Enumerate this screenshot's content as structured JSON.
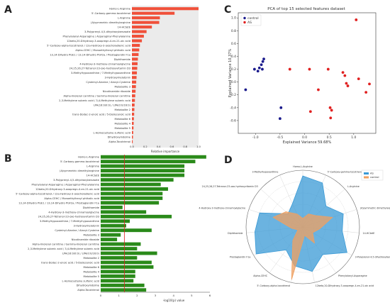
{
  "panels": {
    "A": {
      "letter": "A",
      "xlabel": "Relative importance",
      "bar_color": "#f0503a",
      "chart_data": {
        "type": "bar",
        "orientation": "horizontal",
        "categories": [
          "Homo-L-Arginine",
          "5'-Carboxy-gamma-tocotrienol",
          "L-Arginine",
          "(A)symmetric dimethylarginine",
          "14-HCtetE",
          "3-Polyprenyl-4,5-dihydroxybenzoate",
          "Phenylalanyl-Asparagine / Asparaginyl-Phenylalanine",
          "12beta,20-Dihydroxy-3-oxopregn-4-en-21-oic acid",
          "5'-Carboxy-alpha-tocotrienol / 12a-Hydroxy-3-oxocholadienic acid",
          "Alpha-CEHC / Monoethylhexyl phthalic acid",
          "13,14-Dihydro PGE1 / 13,14-Dihydro PGF2a / Prostaglandin F1a",
          "Diphthamide",
          "4-Hydroxy-3-methoxy-cinnamoylglycine",
          "24,25,26,27-Tetranor-23-oxo-hydroxyvitamin D3",
          "3-Methylhypoxanthine / 7-Methylhypoxanthine",
          "3-Hydroxymelatonin",
          "Cysteinyl-Alanine / Alanyl-Cysteine",
          "Metabolite 3",
          "Nicotinamide riboside",
          "Alpha-linolenyl carnitine / Gamma-linolenyl carnitine",
          "2,3-Methylene suberic acid / 3,4-Methylene suberic acid",
          "LPA(16:0/0:0) / LPA(0:0/16:0)",
          "Metabolite 2",
          "trans-Dodec-2-enoic acid / 5-Dodecenoic acid",
          "Metabolite 6",
          "Metabolite 4",
          "Metabolite 5",
          "L-Homocysteine sulfonic acid",
          "Dihydroxyindoline",
          "Alpha-Tocotrienol"
        ],
        "values": [
          1.0,
          0.64,
          0.42,
          0.41,
          0.3,
          0.22,
          0.18,
          0.15,
          0.12,
          0.11,
          0.1,
          0.09,
          0.085,
          0.08,
          0.075,
          0.07,
          0.065,
          0.06,
          0.055,
          0.05,
          0.045,
          0.04,
          0.037,
          0.034,
          0.03,
          0.027,
          0.024,
          0.02,
          0.016,
          0.012
        ],
        "xlim": [
          0,
          1.0
        ],
        "xticks": [
          "0.0",
          "0.2",
          "0.4",
          "0.6",
          "0.8",
          "1.0"
        ]
      }
    },
    "B": {
      "letter": "B",
      "xlabel": "-log10(p) value",
      "bar_color": "#2a8a1a",
      "threshold": 1.3,
      "chart_data": {
        "type": "bar",
        "orientation": "horizontal",
        "categories": [
          "Homo-L-Arginine",
          "5'-Carboxy-gamma-tocotrienol",
          "L-Arginine",
          "(A)symmetric dimethylarginine",
          "14-HCtetE",
          "3-Polyprenyl-4,5-dihydroxybenzoate",
          "Phenylalanyl-Asparagine / Asparaginyl-Phenylalanine",
          "12beta,20-Dihydroxy-3-oxopregn-4-en-21-oic acid",
          "5'-Carboxy-alpha-tocotrienol / 12a-Hydroxy-3-oxocholadienic acid",
          "Alpha-CEHC / Monoethylhexyl phthalic acid",
          "13,14-Dihydro PGE1 / 13,14-Dihydro PGF2a / Prostaglandin F1a",
          "Diphthamide",
          "4-Hydroxy-3-methoxy-cinnamoylglycine",
          "24,25,26,27-Tetranor-23-oxo-hydroxyvitamin D3",
          "3-Methylhypoxanthine / 7-Methylhypoxanthine",
          "3-Hydroxymelatonin",
          "Cysteinyl-Alanine / Alanyl-Cysteine",
          "Metabolite 3",
          "Nicotinamide riboside",
          "Alpha-linolenyl carnitine / Gamma-linolenyl carnitine",
          "2,3-Methylene suberic acid / 3,4-Methylene suberic acid",
          "LPA(16:0/0:0) / LPA(0:0/16:0)",
          "Metabolite 2",
          "trans-Dodec-2-enoic acid / 5-Dodecenoic acid",
          "Metabolite 6",
          "Metabolite 4",
          "Metabolite 5",
          "L-Homocysteine sulfonic acid",
          "Dihydroxyindoline",
          "Alpha-Tocotrienol"
        ],
        "values": [
          5.8,
          5.2,
          4.6,
          4.6,
          4.6,
          4.0,
          3.3,
          3.7,
          3.4,
          3.4,
          3.2,
          1.2,
          2.5,
          3.9,
          1.6,
          1.4,
          2.8,
          1.1,
          0.9,
          2.2,
          2.0,
          3.1,
          2.0,
          2.8,
          2.9,
          1.9,
          1.9,
          1.8,
          2.4,
          2.5
        ],
        "xlim": [
          0,
          6
        ],
        "xticks": [
          "0",
          "1",
          "2",
          "3",
          "4",
          "5",
          "6"
        ]
      }
    },
    "C": {
      "letter": "C",
      "title": "PCA of top 15 selected features dataset",
      "xlabel": "Explained Variance 59.68%",
      "ylabel": "Explained Variance 10.37%",
      "chart_data": {
        "type": "scatter",
        "xlim": [
          -1.35,
          1.45
        ],
        "ylim": [
          -0.8,
          1.08
        ],
        "xticks": [
          -1.0,
          -0.5,
          0.0,
          0.5,
          1.0
        ],
        "yticks": [
          -0.6,
          -0.4,
          -0.2,
          0.0,
          0.2,
          0.4,
          0.6,
          0.8,
          1.0
        ],
        "series": [
          {
            "name": "control",
            "color": "#1a1a8c",
            "points": [
              [
                -1.2,
                -0.12
              ],
              [
                -1.02,
                0.2
              ],
              [
                -0.95,
                0.17
              ],
              [
                -0.92,
                0.22
              ],
              [
                -0.88,
                0.27
              ],
              [
                -0.85,
                0.32
              ],
              [
                -0.83,
                0.36
              ],
              [
                -0.86,
                0.2
              ],
              [
                -0.5,
                -0.57
              ],
              [
                -0.48,
                -0.4
              ]
            ]
          },
          {
            "name": "AS",
            "color": "#e02020",
            "points": [
              [
                1.05,
                0.97
              ],
              [
                -0.3,
                0.2
              ],
              [
                0.1,
                0.2
              ],
              [
                0.28,
                -0.12
              ],
              [
                0.12,
                -0.46
              ],
              [
                0.48,
                0.2
              ],
              [
                0.52,
                -0.4
              ],
              [
                0.53,
                -0.56
              ],
              [
                0.78,
                0.15
              ],
              [
                0.82,
                0.1
              ],
              [
                0.85,
                -0.02
              ],
              [
                0.88,
                -0.06
              ],
              [
                1.25,
                -0.16
              ],
              [
                1.32,
                -0.03
              ],
              [
                1.1,
                0.05
              ],
              [
                0.55,
                -0.44
              ]
            ]
          }
        ]
      }
    },
    "D": {
      "letter": "D",
      "chart_data": {
        "type": "radar",
        "axes": [
          "Homo-L-Arginine",
          "5'-Carboxy-gamma-tocotrienol",
          "L-Arginine",
          "(A)symmetric dimethylarginine",
          "14-HCtetE",
          "3-Polyprenyl-4,5-dihydroxybenzoate",
          "Phenylalanyl-Asparagine",
          "12beta,20-Dihydroxy-3-oxopregn-4-en-21-oic acid",
          "5'-Carboxy-alpha-tocotrienol",
          "Alpha-CEHC",
          "Prostaglandin F1a",
          "Diphthamide",
          "4-Hydroxy-3-methoxy-cinnamoylglycine",
          "24,25,26,27-Tetranor-23-oxo-hydroxyvitamin D3",
          "3-Methylhypoxanthine"
        ],
        "series": [
          {
            "name": "AS",
            "color": "#3a9ad6",
            "values": [
              0.9,
              0.85,
              0.55,
              0.75,
              0.7,
              0.9,
              0.6,
              0.8,
              0.7,
              0.5,
              0.95,
              0.85,
              0.8,
              0.35,
              0.45
            ]
          },
          {
            "name": "control",
            "color": "#f0a060",
            "values": [
              0.15,
              0.25,
              0.3,
              0.55,
              0.3,
              0.2,
              0.35,
              0.15,
              0.95,
              0.3,
              0.1,
              0.2,
              0.55,
              0.4,
              0.25
            ]
          }
        ]
      }
    }
  }
}
